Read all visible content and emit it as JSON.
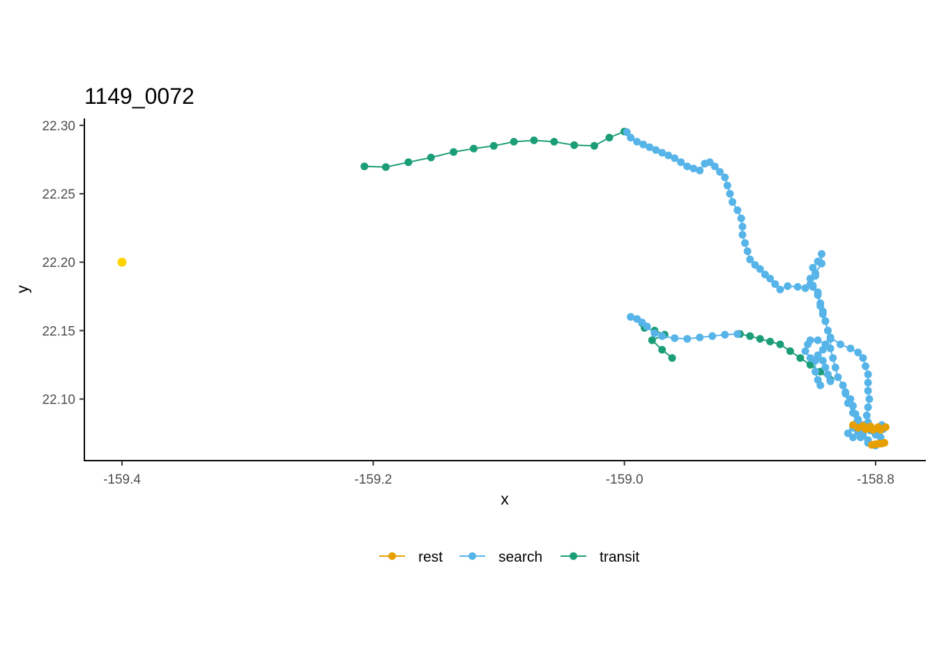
{
  "chart_data": {
    "type": "scatter",
    "title": "1149_0072",
    "xlabel": "x",
    "ylabel": "y",
    "xlim": [
      -159.43,
      -158.76
    ],
    "ylim": [
      22.055,
      22.305
    ],
    "x_ticks": [
      -159.4,
      -159.2,
      -159.0,
      -158.8
    ],
    "x_tick_labels": [
      "-159.4",
      "-159.2",
      "-159.0",
      "-158.8"
    ],
    "y_ticks": [
      22.1,
      22.15,
      22.2,
      22.25,
      22.3
    ],
    "y_tick_labels": [
      "22.10",
      "22.15",
      "22.20",
      "22.25",
      "22.30"
    ],
    "grid": false,
    "legend": {
      "placement": "bottom",
      "entries": [
        "rest",
        "search",
        "transit"
      ]
    },
    "colors": {
      "rest": "#E69F00",
      "search": "#56B4E9",
      "transit": "#1B9E77",
      "highlight": "#FFD300"
    },
    "series": [
      {
        "name": "transit",
        "segments": [
          [
            [
              -159.207,
              22.27
            ],
            [
              -159.19,
              22.2695
            ],
            [
              -159.172,
              22.273
            ],
            [
              -159.154,
              22.2765
            ],
            [
              -159.136,
              22.2805
            ],
            [
              -159.12,
              22.283
            ],
            [
              -159.104,
              22.285
            ],
            [
              -159.088,
              22.288
            ],
            [
              -159.072,
              22.289
            ],
            [
              -159.056,
              22.288
            ],
            [
              -159.04,
              22.2855
            ],
            [
              -159.024,
              22.285
            ],
            [
              -159.012,
              22.291
            ],
            [
              -159.0,
              22.2955
            ]
          ],
          [
            [
              -158.986,
              22.1555
            ],
            [
              -158.984,
              22.152
            ],
            [
              -158.976,
              22.15
            ],
            [
              -158.968,
              22.147
            ],
            [
              -158.978,
              22.143
            ],
            [
              -158.97,
              22.136
            ],
            [
              -158.962,
              22.13
            ]
          ],
          [
            [
              -158.908,
              22.1475
            ],
            [
              -158.9,
              22.146
            ],
            [
              -158.892,
              22.144
            ],
            [
              -158.884,
              22.142
            ],
            [
              -158.876,
              22.14
            ],
            [
              -158.868,
              22.135
            ],
            [
              -158.86,
              22.13
            ],
            [
              -158.852,
              22.125
            ],
            [
              -158.844,
              22.12
            ],
            [
              -158.836,
              22.114
            ]
          ]
        ]
      },
      {
        "name": "search",
        "segments": [
          [
            [
              -158.998,
              22.295
            ],
            [
              -158.995,
              22.291
            ],
            [
              -158.99,
              22.288
            ],
            [
              -158.985,
              22.286
            ],
            [
              -158.98,
              22.284
            ],
            [
              -158.975,
              22.282
            ],
            [
              -158.97,
              22.28
            ],
            [
              -158.965,
              22.278
            ],
            [
              -158.96,
              22.276
            ],
            [
              -158.955,
              22.273
            ],
            [
              -158.95,
              22.27
            ],
            [
              -158.945,
              22.2685
            ],
            [
              -158.94,
              22.267
            ],
            [
              -158.936,
              22.272
            ],
            [
              -158.932,
              22.273
            ],
            [
              -158.928,
              22.27
            ],
            [
              -158.924,
              22.266
            ],
            [
              -158.92,
              22.262
            ],
            [
              -158.918,
              22.256
            ],
            [
              -158.916,
              22.25
            ],
            [
              -158.914,
              22.244
            ],
            [
              -158.91,
              22.238
            ],
            [
              -158.907,
              22.232
            ],
            [
              -158.906,
              22.226
            ],
            [
              -158.906,
              22.22
            ],
            [
              -158.904,
              22.214
            ],
            [
              -158.902,
              22.208
            ],
            [
              -158.9,
              22.202
            ],
            [
              -158.896,
              22.198
            ],
            [
              -158.892,
              22.195
            ],
            [
              -158.888,
              22.191
            ],
            [
              -158.884,
              22.188
            ],
            [
              -158.88,
              22.184
            ],
            [
              -158.876,
              22.18
            ],
            [
              -158.87,
              22.1825
            ],
            [
              -158.862,
              22.182
            ],
            [
              -158.856,
              22.181
            ],
            [
              -158.852,
              22.184
            ],
            [
              -158.848,
              22.19
            ],
            [
              -158.85,
              22.196
            ],
            [
              -158.846,
              22.2005
            ],
            [
              -158.843,
              22.206
            ],
            [
              -158.843,
              22.199
            ],
            [
              -158.848,
              22.192
            ],
            [
              -158.852,
              22.188
            ],
            [
              -158.85,
              22.183
            ],
            [
              -158.846,
              22.178
            ],
            [
              -158.844,
              22.17
            ],
            [
              -158.842,
              22.164
            ],
            [
              -158.84,
              22.157
            ],
            [
              -158.838,
              22.15
            ],
            [
              -158.836,
              22.144
            ],
            [
              -158.836,
              22.137
            ],
            [
              -158.834,
              22.13
            ],
            [
              -158.832,
              22.123
            ],
            [
              -158.83,
              22.116
            ],
            [
              -158.826,
              22.11
            ],
            [
              -158.824,
              22.104
            ],
            [
              -158.822,
              22.097
            ],
            [
              -158.818,
              22.09
            ],
            [
              -158.814,
              22.085
            ],
            [
              -158.81,
              22.081
            ],
            [
              -158.804,
              22.077
            ],
            [
              -158.8,
              22.074
            ],
            [
              -158.796,
              22.072
            ],
            [
              -158.794,
              22.078
            ],
            [
              -158.795,
              22.081
            ]
          ],
          [
            [
              -158.85,
              22.182
            ],
            [
              -158.846,
              22.176
            ],
            [
              -158.844,
              22.168
            ],
            [
              -158.842,
              22.162
            ],
            [
              -158.84,
              22.157
            ],
            [
              -158.838,
              22.15
            ],
            [
              -158.836,
              22.145
            ],
            [
              -158.828,
              22.14
            ],
            [
              -158.82,
              22.137
            ],
            [
              -158.814,
              22.134
            ],
            [
              -158.81,
              22.13
            ],
            [
              -158.808,
              22.124
            ],
            [
              -158.806,
              22.118
            ],
            [
              -158.806,
              22.112
            ],
            [
              -158.806,
              22.106
            ],
            [
              -158.805,
              22.1
            ],
            [
              -158.806,
              22.094
            ],
            [
              -158.807,
              22.088
            ],
            [
              -158.806,
              22.083
            ],
            [
              -158.81,
              22.079
            ],
            [
              -158.814,
              22.076
            ],
            [
              -158.81,
              22.074
            ],
            [
              -158.806,
              22.068
            ],
            [
              -158.8,
              22.066
            ]
          ],
          [
            [
              -158.995,
              22.16
            ],
            [
              -158.99,
              22.1585
            ],
            [
              -158.986,
              22.156
            ],
            [
              -158.982,
              22.153
            ],
            [
              -158.976,
              22.148
            ],
            [
              -158.97,
              22.146
            ],
            [
              -158.96,
              22.1445
            ],
            [
              -158.95,
              22.144
            ],
            [
              -158.94,
              22.145
            ],
            [
              -158.93,
              22.146
            ],
            [
              -158.92,
              22.147
            ],
            [
              -158.91,
              22.1475
            ]
          ],
          [
            [
              -158.836,
              22.113
            ],
            [
              -158.838,
              22.118
            ],
            [
              -158.84,
              22.123
            ],
            [
              -158.842,
              22.128
            ],
            [
              -158.846,
              22.13
            ],
            [
              -158.852,
              22.13
            ],
            [
              -158.856,
              22.135
            ],
            [
              -158.854,
              22.14
            ],
            [
              -158.852,
              22.143
            ],
            [
              -158.846,
              22.143
            ],
            [
              -158.84,
              22.14
            ],
            [
              -158.842,
              22.136
            ],
            [
              -158.846,
              22.132
            ],
            [
              -158.848,
              22.128
            ],
            [
              -158.848,
              22.12
            ],
            [
              -158.846,
              22.114
            ],
            [
              -158.844,
              22.11
            ]
          ],
          [
            [
              -158.824,
              22.105
            ],
            [
              -158.82,
              22.1
            ],
            [
              -158.818,
              22.095
            ],
            [
              -158.816,
              22.089
            ],
            [
              -158.815,
              22.083
            ],
            [
              -158.818,
              22.079
            ],
            [
              -158.822,
              22.075
            ],
            [
              -158.818,
              22.072
            ],
            [
              -158.812,
              22.072
            ],
            [
              -158.806,
              22.07
            ]
          ]
        ]
      },
      {
        "name": "rest",
        "segments": [
          [
            [
              -158.818,
              22.081
            ],
            [
              -158.81,
              22.0805
            ],
            [
              -158.804,
              22.08
            ],
            [
              -158.798,
              22.0795
            ],
            [
              -158.792,
              22.0795
            ],
            [
              -158.798,
              22.0785
            ],
            [
              -158.806,
              22.0785
            ],
            [
              -158.814,
              22.079
            ],
            [
              -158.808,
              22.078
            ],
            [
              -158.802,
              22.0775
            ],
            [
              -158.796,
              22.0775
            ]
          ],
          [
            [
              -158.803,
              22.0665
            ],
            [
              -158.799,
              22.067
            ],
            [
              -158.795,
              22.0675
            ],
            [
              -158.793,
              22.068
            ],
            [
              -158.797,
              22.0675
            ],
            [
              -158.8,
              22.067
            ]
          ]
        ]
      },
      {
        "name": "",
        "points": [
          [
            -159.4,
            22.2
          ]
        ]
      }
    ]
  }
}
